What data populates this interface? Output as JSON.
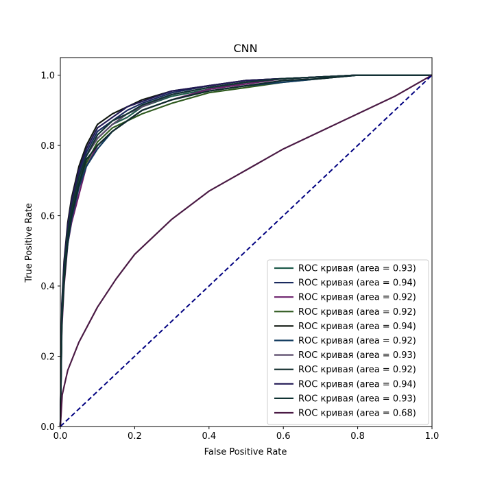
{
  "chart_data": {
    "type": "line",
    "title": "CNN",
    "xlabel": "False Positive Rate",
    "ylabel": "True Positive Rate",
    "xlim": [
      0.0,
      1.0
    ],
    "ylim": [
      0.0,
      1.05
    ],
    "grid": false,
    "legend_position": "bottom-right",
    "x_ticks": [
      0.0,
      0.2,
      0.4,
      0.6,
      0.8,
      1.0
    ],
    "y_ticks": [
      0.0,
      0.2,
      0.4,
      0.6,
      0.8,
      1.0
    ],
    "x_tick_labels": [
      "0.0",
      "0.2",
      "0.4",
      "0.6",
      "0.8",
      "1.0"
    ],
    "y_tick_labels": [
      "0.0",
      "0.2",
      "0.4",
      "0.6",
      "0.8",
      "1.0"
    ],
    "series": [
      {
        "name": "ROC кривая (area = 0.93)",
        "auc": 0.93,
        "color": "#1e5a4a",
        "x": [
          0,
          0.004,
          0.01,
          0.02,
          0.03,
          0.05,
          0.07,
          0.1,
          0.14,
          0.18,
          0.22,
          0.3,
          0.4,
          0.5,
          0.6,
          0.7,
          0.8,
          0.9,
          1.0
        ],
        "y": [
          0,
          0.3,
          0.42,
          0.54,
          0.61,
          0.7,
          0.77,
          0.82,
          0.86,
          0.88,
          0.91,
          0.94,
          0.96,
          0.98,
          0.99,
          0.995,
          1.0,
          1.0,
          1.0
        ]
      },
      {
        "name": "ROC кривая (area = 0.94)",
        "auc": 0.94,
        "color": "#1a2a5e",
        "x": [
          0,
          0.004,
          0.01,
          0.02,
          0.03,
          0.05,
          0.07,
          0.1,
          0.14,
          0.18,
          0.22,
          0.3,
          0.4,
          0.5,
          0.6,
          0.7,
          0.8,
          0.9,
          1.0
        ],
        "y": [
          0,
          0.33,
          0.45,
          0.56,
          0.63,
          0.72,
          0.78,
          0.84,
          0.87,
          0.9,
          0.92,
          0.95,
          0.97,
          0.985,
          0.99,
          0.995,
          1.0,
          1.0,
          1.0
        ]
      },
      {
        "name": "ROC кривая (area = 0.92)",
        "auc": 0.92,
        "color": "#6a1f6a",
        "x": [
          0,
          0.004,
          0.01,
          0.02,
          0.03,
          0.05,
          0.07,
          0.1,
          0.14,
          0.18,
          0.22,
          0.3,
          0.4,
          0.5,
          0.6,
          0.7,
          0.8,
          0.9,
          1.0
        ],
        "y": [
          0,
          0.28,
          0.4,
          0.52,
          0.58,
          0.66,
          0.74,
          0.8,
          0.84,
          0.87,
          0.9,
          0.93,
          0.96,
          0.975,
          0.99,
          0.995,
          1.0,
          1.0,
          1.0
        ]
      },
      {
        "name": "ROC кривая (area = 0.92)",
        "auc": 0.92,
        "color": "#2f5a1f",
        "x": [
          0,
          0.004,
          0.01,
          0.02,
          0.03,
          0.05,
          0.07,
          0.1,
          0.14,
          0.18,
          0.22,
          0.3,
          0.4,
          0.5,
          0.6,
          0.7,
          0.8,
          0.9,
          1.0
        ],
        "y": [
          0,
          0.3,
          0.41,
          0.53,
          0.6,
          0.69,
          0.75,
          0.81,
          0.85,
          0.87,
          0.89,
          0.92,
          0.95,
          0.965,
          0.98,
          0.99,
          1.0,
          1.0,
          1.0
        ]
      },
      {
        "name": "ROC кривая (area = 0.94)",
        "auc": 0.94,
        "color": "#111811",
        "x": [
          0,
          0.004,
          0.01,
          0.02,
          0.03,
          0.05,
          0.07,
          0.1,
          0.14,
          0.18,
          0.22,
          0.3,
          0.4,
          0.5,
          0.6,
          0.7,
          0.8,
          0.9,
          1.0
        ],
        "y": [
          0,
          0.35,
          0.47,
          0.58,
          0.65,
          0.74,
          0.8,
          0.86,
          0.89,
          0.91,
          0.93,
          0.955,
          0.97,
          0.985,
          0.99,
          0.995,
          1.0,
          1.0,
          1.0
        ]
      },
      {
        "name": "ROC кривая (area = 0.92)",
        "auc": 0.92,
        "color": "#113a5e",
        "x": [
          0,
          0.004,
          0.01,
          0.02,
          0.03,
          0.05,
          0.07,
          0.1,
          0.14,
          0.18,
          0.22,
          0.3,
          0.4,
          0.5,
          0.6,
          0.7,
          0.8,
          0.9,
          1.0
        ],
        "y": [
          0,
          0.31,
          0.42,
          0.52,
          0.59,
          0.68,
          0.74,
          0.79,
          0.84,
          0.87,
          0.9,
          0.93,
          0.955,
          0.97,
          0.98,
          0.99,
          1.0,
          1.0,
          1.0
        ]
      },
      {
        "name": "ROC кривая (area = 0.93)",
        "auc": 0.93,
        "color": "#5a4a6a",
        "x": [
          0,
          0.004,
          0.01,
          0.02,
          0.03,
          0.05,
          0.07,
          0.1,
          0.14,
          0.18,
          0.22,
          0.3,
          0.4,
          0.5,
          0.6,
          0.7,
          0.8,
          0.9,
          1.0
        ],
        "y": [
          0,
          0.32,
          0.44,
          0.55,
          0.62,
          0.71,
          0.77,
          0.82,
          0.86,
          0.89,
          0.91,
          0.945,
          0.965,
          0.98,
          0.99,
          0.995,
          1.0,
          1.0,
          1.0
        ]
      },
      {
        "name": "ROC кривая (area = 0.92)",
        "auc": 0.92,
        "color": "#0f2a2a",
        "x": [
          0,
          0.004,
          0.01,
          0.02,
          0.03,
          0.05,
          0.07,
          0.1,
          0.14,
          0.18,
          0.22,
          0.3,
          0.4,
          0.5,
          0.6,
          0.7,
          0.8,
          0.9,
          1.0
        ],
        "y": [
          0,
          0.3,
          0.41,
          0.53,
          0.6,
          0.69,
          0.76,
          0.8,
          0.84,
          0.87,
          0.9,
          0.93,
          0.955,
          0.97,
          0.985,
          0.99,
          1.0,
          1.0,
          1.0
        ]
      },
      {
        "name": "ROC кривая (area = 0.94)",
        "auc": 0.94,
        "color": "#221a55",
        "x": [
          0,
          0.004,
          0.01,
          0.02,
          0.03,
          0.05,
          0.07,
          0.1,
          0.14,
          0.18,
          0.22,
          0.3,
          0.4,
          0.5,
          0.6,
          0.7,
          0.8,
          0.9,
          1.0
        ],
        "y": [
          0,
          0.34,
          0.46,
          0.57,
          0.64,
          0.73,
          0.79,
          0.85,
          0.88,
          0.91,
          0.925,
          0.955,
          0.97,
          0.985,
          0.99,
          0.995,
          1.0,
          1.0,
          1.0
        ]
      },
      {
        "name": "ROC кривая (area = 0.93)",
        "auc": 0.93,
        "color": "#113333",
        "x": [
          0,
          0.004,
          0.01,
          0.02,
          0.03,
          0.05,
          0.07,
          0.1,
          0.14,
          0.18,
          0.22,
          0.3,
          0.4,
          0.5,
          0.6,
          0.7,
          0.8,
          0.9,
          1.0
        ],
        "y": [
          0,
          0.32,
          0.44,
          0.55,
          0.62,
          0.71,
          0.77,
          0.83,
          0.87,
          0.89,
          0.915,
          0.945,
          0.965,
          0.98,
          0.99,
          0.995,
          1.0,
          1.0,
          1.0
        ]
      },
      {
        "name": "ROC кривая (area = 0.68)",
        "auc": 0.68,
        "color": "#4a1a44",
        "x": [
          0,
          0.005,
          0.02,
          0.05,
          0.1,
          0.15,
          0.2,
          0.25,
          0.3,
          0.35,
          0.4,
          0.5,
          0.6,
          0.7,
          0.8,
          0.9,
          1.0
        ],
        "y": [
          0,
          0.09,
          0.16,
          0.24,
          0.34,
          0.42,
          0.49,
          0.54,
          0.59,
          0.63,
          0.67,
          0.73,
          0.79,
          0.84,
          0.89,
          0.94,
          1.0
        ]
      }
    ],
    "reference_line": {
      "color": "#000080",
      "x": [
        0,
        1
      ],
      "y": [
        0,
        1
      ],
      "style": "dashed"
    }
  }
}
